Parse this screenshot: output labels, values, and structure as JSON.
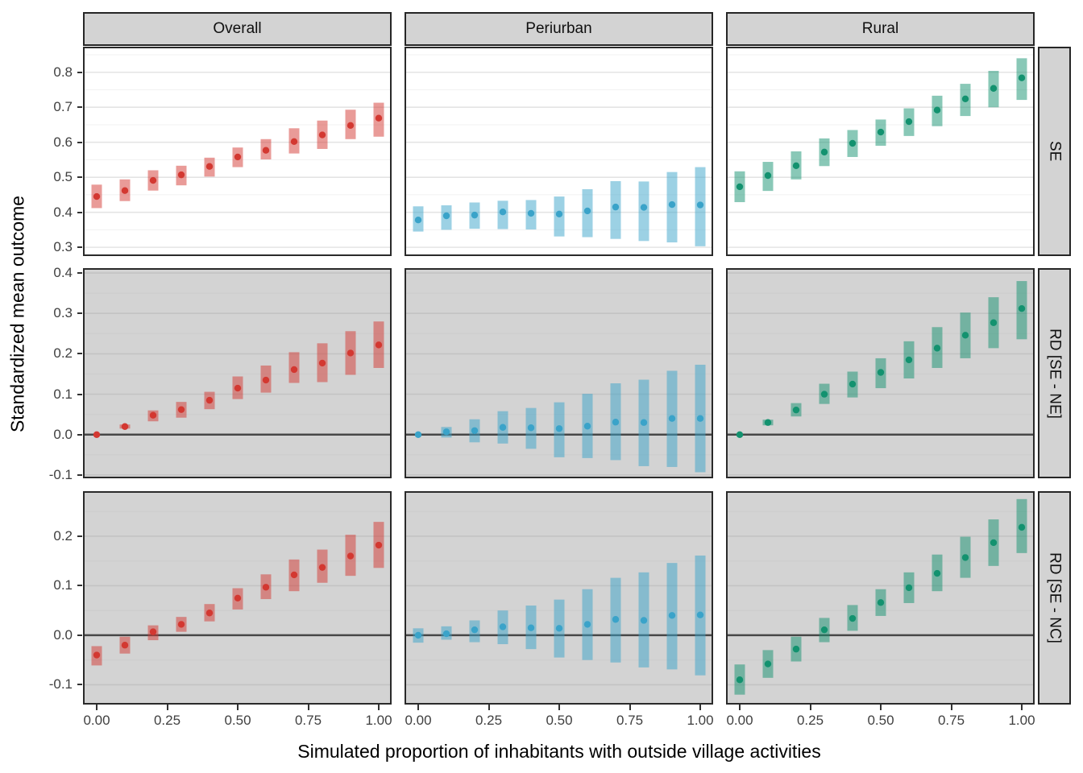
{
  "figure": {
    "ylabel": "Standardized mean outcome",
    "xlabel": "Simulated proportion of inhabitants with outside village activities"
  },
  "chart_data": {
    "type": "pointrange-facet-grid",
    "title": "",
    "xlabel": "Simulated proportion of inhabitants with outside village activities",
    "ylabel": "Standardized mean outcome",
    "x": [
      0.0,
      0.1,
      0.2,
      0.3,
      0.4,
      0.5,
      0.6,
      0.7,
      0.8,
      0.9,
      1.0
    ],
    "x_ticks": {
      "values": [
        0.0,
        0.25,
        0.5,
        0.75,
        1.0
      ],
      "labels": [
        "0.00",
        "0.25",
        "0.50",
        "0.75",
        "1.00"
      ]
    },
    "xlim": [
      -0.05,
      1.05
    ],
    "grid": "on",
    "legend": "none",
    "columns": [
      {
        "label": "Overall",
        "color": "#D33831"
      },
      {
        "label": "Periurban",
        "color": "#3AA3C9"
      },
      {
        "label": "Rural",
        "color": "#13926F"
      }
    ],
    "rows": [
      {
        "label": "SE",
        "ylim": [
          0.275,
          0.873
        ],
        "yticks": [
          0.3,
          0.4,
          0.5,
          0.6,
          0.7,
          0.8
        ],
        "panel_bg": "#FFFFFF",
        "grid_major": "#E4E4E4",
        "grid_minor": "#F1F1F1",
        "zero_line": false
      },
      {
        "label": "RD [SE - NE]",
        "ylim": [
          -0.108,
          0.412
        ],
        "yticks": [
          -0.1,
          0.0,
          0.1,
          0.2,
          0.3,
          0.4
        ],
        "panel_bg": "#D3D3D3",
        "grid_major": "#C3C3C3",
        "grid_minor": "#CCCCCC",
        "zero_line": true
      },
      {
        "label": "RD [SE - NC]",
        "ylim": [
          -0.14,
          0.291
        ],
        "yticks": [
          -0.1,
          0.0,
          0.1,
          0.2
        ],
        "panel_bg": "#D3D3D3",
        "grid_major": "#C3C3C3",
        "grid_minor": "#CCCCCC",
        "zero_line": true
      }
    ],
    "series": [
      [
        {
          "row": "SE",
          "col": "Overall",
          "y": [
            0.445,
            0.462,
            0.491,
            0.507,
            0.531,
            0.558,
            0.577,
            0.602,
            0.621,
            0.648,
            0.669
          ],
          "lo": [
            0.412,
            0.432,
            0.462,
            0.477,
            0.502,
            0.529,
            0.551,
            0.568,
            0.581,
            0.609,
            0.616
          ],
          "hi": [
            0.479,
            0.494,
            0.52,
            0.533,
            0.556,
            0.585,
            0.609,
            0.64,
            0.662,
            0.693,
            0.713
          ]
        },
        {
          "row": "SE",
          "col": "Periurban",
          "y": [
            0.378,
            0.39,
            0.392,
            0.401,
            0.397,
            0.395,
            0.404,
            0.415,
            0.414,
            0.422,
            0.421
          ],
          "lo": [
            0.345,
            0.35,
            0.353,
            0.352,
            0.351,
            0.331,
            0.329,
            0.324,
            0.318,
            0.314,
            0.303
          ],
          "hi": [
            0.417,
            0.42,
            0.428,
            0.433,
            0.435,
            0.445,
            0.466,
            0.489,
            0.488,
            0.515,
            0.529
          ]
        },
        {
          "row": "SE",
          "col": "Rural",
          "y": [
            0.473,
            0.505,
            0.533,
            0.572,
            0.597,
            0.629,
            0.659,
            0.692,
            0.724,
            0.754,
            0.784
          ],
          "lo": [
            0.429,
            0.461,
            0.494,
            0.532,
            0.558,
            0.59,
            0.618,
            0.646,
            0.675,
            0.7,
            0.721
          ],
          "hi": [
            0.517,
            0.544,
            0.574,
            0.611,
            0.635,
            0.665,
            0.697,
            0.733,
            0.767,
            0.804,
            0.84
          ]
        }
      ],
      [
        {
          "row": "RD [SE - NE]",
          "col": "Overall",
          "y": [
            0.0,
            0.02,
            0.048,
            0.062,
            0.085,
            0.115,
            0.135,
            0.161,
            0.177,
            0.202,
            0.222
          ],
          "lo": [
            0.0,
            0.015,
            0.033,
            0.042,
            0.063,
            0.088,
            0.104,
            0.128,
            0.13,
            0.148,
            0.165
          ],
          "hi": [
            0.0,
            0.025,
            0.06,
            0.081,
            0.106,
            0.144,
            0.171,
            0.204,
            0.226,
            0.256,
            0.28
          ]
        },
        {
          "row": "RD [SE - NE]",
          "col": "Periurban",
          "y": [
            0.0,
            0.007,
            0.01,
            0.018,
            0.017,
            0.015,
            0.021,
            0.031,
            0.03,
            0.04,
            0.04
          ],
          "lo": [
            0.0,
            -0.007,
            -0.019,
            -0.022,
            -0.035,
            -0.056,
            -0.058,
            -0.063,
            -0.078,
            -0.08,
            -0.093
          ],
          "hi": [
            0.0,
            0.019,
            0.038,
            0.058,
            0.066,
            0.08,
            0.101,
            0.127,
            0.136,
            0.158,
            0.173
          ]
        },
        {
          "row": "RD [SE - NE]",
          "col": "Rural",
          "y": [
            0.0,
            0.03,
            0.061,
            0.1,
            0.125,
            0.154,
            0.185,
            0.214,
            0.246,
            0.277,
            0.312
          ],
          "lo": [
            0.0,
            0.023,
            0.045,
            0.076,
            0.092,
            0.115,
            0.139,
            0.165,
            0.189,
            0.214,
            0.236
          ],
          "hi": [
            0.0,
            0.037,
            0.078,
            0.126,
            0.156,
            0.189,
            0.231,
            0.266,
            0.302,
            0.34,
            0.38
          ]
        }
      ],
      [
        {
          "row": "RD [SE - NC]",
          "col": "Overall",
          "y": [
            -0.04,
            -0.02,
            0.007,
            0.022,
            0.045,
            0.075,
            0.097,
            0.122,
            0.137,
            0.16,
            0.182
          ],
          "lo": [
            -0.061,
            -0.037,
            -0.01,
            0.007,
            0.028,
            0.052,
            0.073,
            0.089,
            0.106,
            0.12,
            0.136
          ],
          "hi": [
            -0.022,
            -0.003,
            0.02,
            0.037,
            0.063,
            0.095,
            0.123,
            0.153,
            0.173,
            0.203,
            0.229
          ]
        },
        {
          "row": "RD [SE - NC]",
          "col": "Periurban",
          "y": [
            0.0,
            0.003,
            0.011,
            0.017,
            0.015,
            0.014,
            0.022,
            0.032,
            0.03,
            0.04,
            0.041
          ],
          "lo": [
            -0.015,
            -0.009,
            -0.014,
            -0.018,
            -0.028,
            -0.045,
            -0.05,
            -0.055,
            -0.065,
            -0.069,
            -0.081
          ],
          "hi": [
            0.014,
            0.018,
            0.03,
            0.05,
            0.06,
            0.072,
            0.093,
            0.116,
            0.127,
            0.146,
            0.161
          ]
        },
        {
          "row": "RD [SE - NC]",
          "col": "Rural",
          "y": [
            -0.09,
            -0.058,
            -0.028,
            0.011,
            0.034,
            0.066,
            0.096,
            0.125,
            0.157,
            0.187,
            0.218
          ],
          "lo": [
            -0.12,
            -0.086,
            -0.053,
            -0.014,
            0.009,
            0.039,
            0.065,
            0.089,
            0.116,
            0.14,
            0.166
          ],
          "hi": [
            -0.059,
            -0.03,
            -0.003,
            0.035,
            0.061,
            0.093,
            0.127,
            0.163,
            0.199,
            0.234,
            0.275
          ]
        }
      ]
    ],
    "style": {
      "bar_alpha": 0.5,
      "strip_bg": "#D3D3D3",
      "panel_border": "#2A2A2A",
      "zero_line_color": "#474747",
      "tick_text_color": "#3f3f3f"
    }
  }
}
